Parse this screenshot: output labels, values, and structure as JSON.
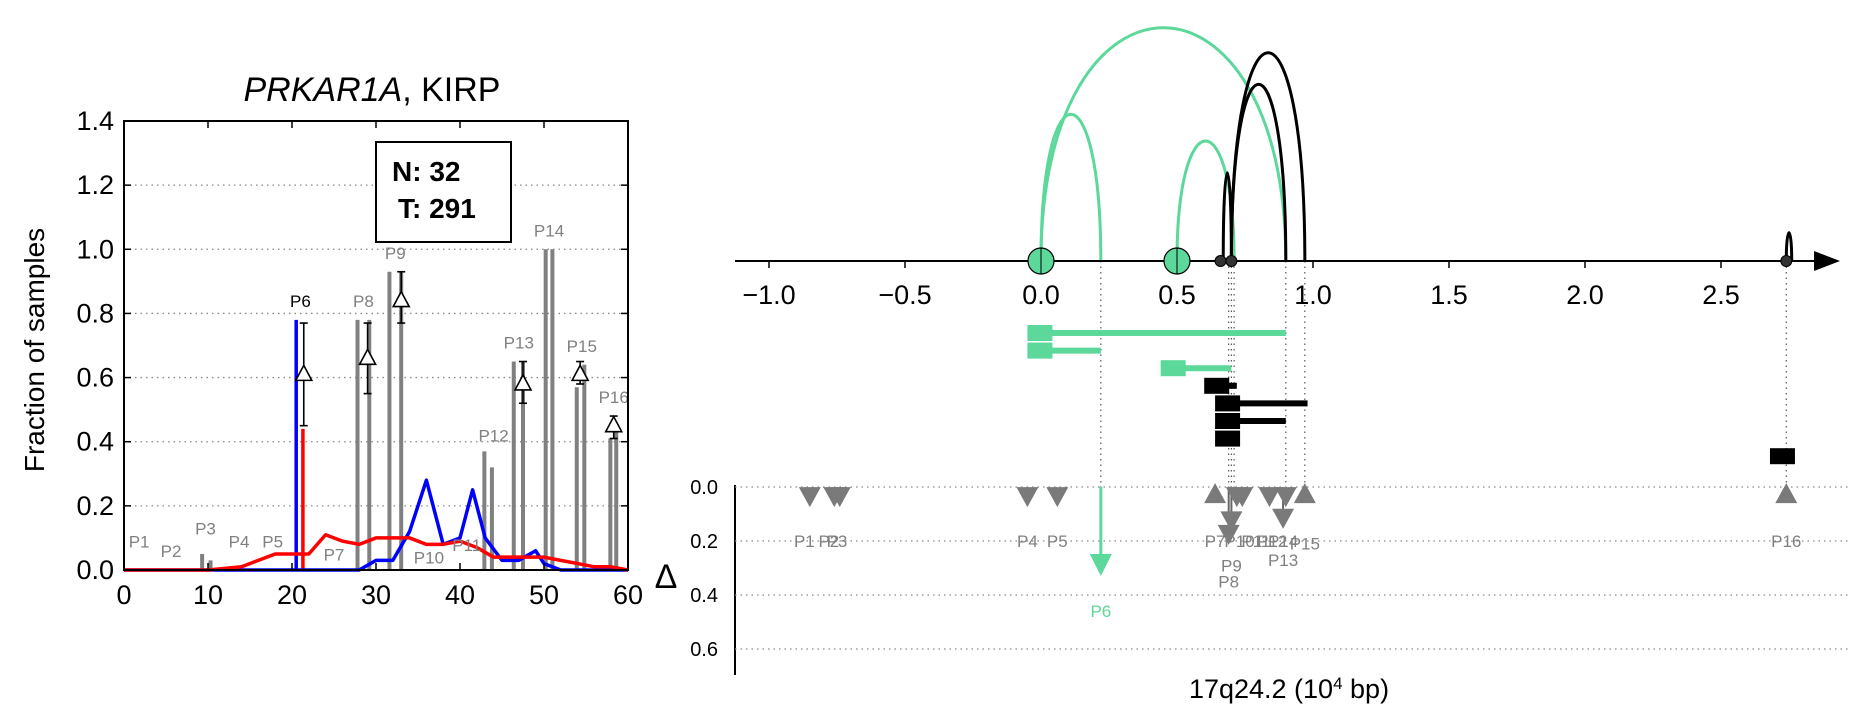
{
  "colors": {
    "blue": "#0000ff",
    "red": "#ff0000",
    "gray": "#808080",
    "green": "#5bd89a",
    "black": "#000000",
    "label_gray": "#808080"
  },
  "chart_data": [
    {
      "type": "bar",
      "title_italic": "PRKAR1A",
      "title_rest": ", KIRP",
      "xlabel": "",
      "ylabel": "Fraction of samples",
      "xlim": [
        0,
        60
      ],
      "ylim": [
        0,
        1.4
      ],
      "xticks": [
        0,
        10,
        20,
        30,
        40,
        50,
        60
      ],
      "yticks": [
        0.0,
        0.2,
        0.4,
        0.6,
        0.8,
        1.0,
        1.2,
        1.4
      ],
      "grid": "y-dotted",
      "legend_box": {
        "lines": [
          "N: 32",
          "T: 291"
        ],
        "placement": "top-center"
      },
      "bar_series_gray": [
        {
          "x": 9.3,
          "value": 0.05
        },
        {
          "x": 10.3,
          "value": 0.03
        },
        {
          "x": 27.8,
          "value": 0.78
        },
        {
          "x": 29.2,
          "value": 0.78
        },
        {
          "x": 31.6,
          "value": 0.93
        },
        {
          "x": 33.0,
          "value": 0.93
        },
        {
          "x": 42.9,
          "value": 0.37
        },
        {
          "x": 43.8,
          "value": 0.32
        },
        {
          "x": 46.4,
          "value": 0.65
        },
        {
          "x": 47.5,
          "value": 0.65
        },
        {
          "x": 50.2,
          "value": 1.0
        },
        {
          "x": 51.0,
          "value": 1.0
        },
        {
          "x": 53.9,
          "value": 0.57
        },
        {
          "x": 54.8,
          "value": 0.64
        },
        {
          "x": 57.9,
          "value": 0.41
        },
        {
          "x": 58.6,
          "value": 0.45
        }
      ],
      "highlight_bars": [
        {
          "series": "blue",
          "x": 20.5,
          "value": 0.78
        },
        {
          "series": "red",
          "x": 21.3,
          "value": 0.44
        }
      ],
      "line_series": [
        {
          "color_key": "blue",
          "x": [
            0,
            10,
            20,
            26,
            28,
            30,
            32,
            34,
            36,
            38,
            40,
            41.5,
            43,
            45,
            47,
            49,
            50,
            52,
            55,
            58,
            60
          ],
          "values": [
            0,
            0,
            0,
            0,
            0,
            0.03,
            0.03,
            0.12,
            0.28,
            0.08,
            0.1,
            0.25,
            0.1,
            0.03,
            0.03,
            0.06,
            0.02,
            0,
            0,
            0,
            0
          ]
        },
        {
          "color_key": "red",
          "x": [
            0,
            10,
            14,
            18,
            20,
            22,
            24,
            26,
            28,
            30,
            32,
            34,
            36,
            38,
            40,
            42,
            44,
            46,
            48,
            50,
            52,
            54,
            56,
            58,
            60
          ],
          "values": [
            0,
            0,
            0.01,
            0.05,
            0.05,
            0.05,
            0.11,
            0.09,
            0.08,
            0.1,
            0.1,
            0.1,
            0.08,
            0.08,
            0.09,
            0.07,
            0.04,
            0.04,
            0.04,
            0.04,
            0.03,
            0.02,
            0.01,
            0.01,
            0
          ]
        }
      ],
      "error_markers": [
        {
          "x": 21.4,
          "value": 0.61,
          "low": 0.45,
          "high": 0.77
        },
        {
          "x": 29.0,
          "value": 0.66,
          "low": 0.55,
          "high": 0.77
        },
        {
          "x": 33.0,
          "value": 0.84,
          "low": 0.77,
          "high": 0.93
        },
        {
          "x": 47.5,
          "value": 0.58,
          "low": 0.52,
          "high": 0.65
        },
        {
          "x": 54.3,
          "value": 0.61,
          "low": 0.58,
          "high": 0.65
        },
        {
          "x": 58.3,
          "value": 0.45,
          "low": 0.41,
          "high": 0.48
        }
      ],
      "peak_labels": [
        {
          "text": "P1",
          "x": 1.8,
          "y": 0.07,
          "color_key": "label_gray"
        },
        {
          "text": "P2",
          "x": 5.6,
          "y": 0.04,
          "color_key": "label_gray"
        },
        {
          "text": "P3",
          "x": 9.7,
          "y": 0.11,
          "color_key": "label_gray"
        },
        {
          "text": "P4",
          "x": 13.7,
          "y": 0.07,
          "color_key": "label_gray"
        },
        {
          "text": "P5",
          "x": 17.7,
          "y": 0.07,
          "color_key": "label_gray"
        },
        {
          "text": "P6",
          "x": 21.0,
          "y": 0.82,
          "color_key": "black"
        },
        {
          "text": "P7",
          "x": 25.0,
          "y": 0.03,
          "color_key": "label_gray"
        },
        {
          "text": "P8",
          "x": 28.5,
          "y": 0.82,
          "color_key": "label_gray"
        },
        {
          "text": "P9",
          "x": 32.3,
          "y": 0.97,
          "color_key": "label_gray"
        },
        {
          "text": "P10",
          "x": 36.3,
          "y": 0.02,
          "color_key": "label_gray"
        },
        {
          "text": "P11",
          "x": 40.8,
          "y": 0.06,
          "color_key": "label_gray"
        },
        {
          "text": "P12",
          "x": 44.0,
          "y": 0.4,
          "color_key": "label_gray"
        },
        {
          "text": "P13",
          "x": 47.0,
          "y": 0.69,
          "color_key": "label_gray"
        },
        {
          "text": "P14",
          "x": 50.6,
          "y": 1.04,
          "color_key": "label_gray"
        },
        {
          "text": "P15",
          "x": 54.5,
          "y": 0.68,
          "color_key": "label_gray"
        },
        {
          "text": "P16",
          "x": 58.3,
          "y": 0.52,
          "color_key": "label_gray"
        }
      ]
    },
    {
      "type": "scatter",
      "xlabel": "17q24.2 (10",
      "xlabel_sup": "4",
      "xlabel_tail": " bp)",
      "ylabel": "Δ",
      "xlim": [
        -1.1,
        2.85
      ],
      "x_ticks": [
        "−1.0",
        "−0.5",
        "0.0",
        "0.5",
        "1.0",
        "1.5",
        "2.0",
        "2.5"
      ],
      "x_tick_values": [
        -1.0,
        -0.5,
        0.0,
        0.5,
        1.0,
        1.5,
        2.0,
        2.5
      ],
      "ylim": [
        0,
        0.7
      ],
      "y_ticks": [
        "0.0",
        "0.2",
        "0.4",
        "0.6"
      ],
      "y_tick_values": [
        0.0,
        0.2,
        0.4,
        0.6
      ],
      "arcs": [
        {
          "x1": 0.0,
          "x2": 0.22,
          "height": 0.88,
          "color_key": "green"
        },
        {
          "x1": 0.0,
          "x2": 0.9,
          "height": 1.4,
          "color_key": "green"
        },
        {
          "x1": 0.5,
          "x2": 0.71,
          "height": 0.72,
          "color_key": "green"
        },
        {
          "x1": 0.67,
          "x2": 0.7,
          "height": 0.53,
          "color_key": "black"
        },
        {
          "x1": 0.7,
          "x2": 0.9,
          "height": 1.06,
          "color_key": "black"
        },
        {
          "x1": 0.7,
          "x2": 0.97,
          "height": 1.25,
          "color_key": "black"
        },
        {
          "x1": 2.74,
          "x2": 2.76,
          "height": 0.17,
          "color_key": "black"
        }
      ],
      "axis_circles": [
        {
          "x": 0.0,
          "kind": "large",
          "color_key": "green"
        },
        {
          "x": 0.5,
          "kind": "large",
          "color_key": "green"
        },
        {
          "x": 0.66,
          "kind": "small",
          "color_key": "black"
        },
        {
          "x": 0.7,
          "kind": "small",
          "color_key": "black"
        },
        {
          "x": 2.74,
          "kind": "small",
          "color_key": "black"
        }
      ],
      "segments": [
        {
          "x_start": -0.05,
          "x_end": 0.9,
          "row": 0,
          "color_key": "green"
        },
        {
          "x_start": -0.05,
          "x_end": 0.22,
          "row": 1,
          "color_key": "green"
        },
        {
          "x_start": 0.44,
          "x_end": 0.7,
          "row": 2,
          "color_key": "green"
        },
        {
          "x_start": 0.6,
          "x_end": 0.72,
          "row": 3,
          "color_key": "black"
        },
        {
          "x_start": 0.64,
          "x_end": 0.98,
          "row": 4,
          "color_key": "black"
        },
        {
          "x_start": 0.64,
          "x_end": 0.9,
          "row": 5,
          "color_key": "black"
        },
        {
          "x_start": 0.64,
          "x_end": 0.71,
          "row": 6,
          "color_key": "black"
        },
        {
          "x_start": 2.68,
          "x_end": 2.77,
          "row": 7,
          "color_key": "black"
        }
      ],
      "guides": [
        0.22,
        0.69,
        0.7,
        0.71,
        0.9,
        0.97,
        2.74
      ],
      "triangles": [
        {
          "label": "P1",
          "x": -0.85,
          "value": 0.03,
          "dir": "down",
          "color_key": "gray"
        },
        {
          "label": "P2",
          "x": -0.76,
          "value": 0.03,
          "dir": "down",
          "color_key": "gray"
        },
        {
          "label": "P3",
          "x": -0.74,
          "value": 0.03,
          "dir": "down",
          "color_key": "gray"
        },
        {
          "label": "P4",
          "x": -0.05,
          "value": 0.03,
          "dir": "down",
          "color_key": "gray"
        },
        {
          "label": "P5",
          "x": 0.06,
          "value": 0.03,
          "dir": "down",
          "color_key": "gray"
        },
        {
          "label": "P6",
          "x": 0.22,
          "value": 0.3,
          "dir": "arrow",
          "color_key": "green"
        },
        {
          "label": "P7",
          "x": 0.64,
          "value": 0.03,
          "dir": "up",
          "color_key": "gray"
        },
        {
          "label": "P8",
          "x": 0.69,
          "value": 0.17,
          "dir": "down",
          "color_key": "gray"
        },
        {
          "label": "P9",
          "x": 0.7,
          "value": 0.12,
          "dir": "down",
          "color_key": "gray"
        },
        {
          "label": "P10",
          "x": 0.72,
          "value": 0.03,
          "dir": "down",
          "color_key": "gray"
        },
        {
          "label": "P11",
          "x": 0.74,
          "value": 0.03,
          "dir": "down",
          "color_key": "gray"
        },
        {
          "label": "P12",
          "x": 0.84,
          "value": 0.03,
          "dir": "down",
          "color_key": "gray"
        },
        {
          "label": "P13",
          "x": 0.89,
          "value": 0.11,
          "dir": "down",
          "color_key": "gray"
        },
        {
          "label": "P14",
          "x": 0.9,
          "value": 0.03,
          "dir": "down",
          "color_key": "gray"
        },
        {
          "label": "P15",
          "x": 0.97,
          "value": 0.03,
          "dir": "up",
          "color_key": "gray"
        },
        {
          "label": "P16",
          "x": 2.74,
          "value": 0.03,
          "dir": "up",
          "color_key": "gray"
        }
      ],
      "triangle_labels": [
        {
          "text": "P1",
          "x": -0.87,
          "value": 0.2,
          "color_key": "label_gray"
        },
        {
          "text": "P2",
          "x": -0.78,
          "value": 0.2,
          "color_key": "label_gray"
        },
        {
          "text": "P3",
          "x": -0.75,
          "value": 0.2,
          "color_key": "label_gray"
        },
        {
          "text": "P4",
          "x": -0.05,
          "value": 0.2,
          "color_key": "label_gray"
        },
        {
          "text": "P5",
          "x": 0.06,
          "value": 0.2,
          "color_key": "label_gray"
        },
        {
          "text": "P6",
          "x": 0.22,
          "value": 0.46,
          "color_key": "green"
        },
        {
          "text": "P7",
          "x": 0.64,
          "value": 0.2,
          "color_key": "label_gray"
        },
        {
          "text": "P8",
          "x": 0.69,
          "value": 0.35,
          "color_key": "label_gray"
        },
        {
          "text": "P9",
          "x": 0.7,
          "value": 0.29,
          "color_key": "label_gray"
        },
        {
          "text": "P10",
          "x": 0.73,
          "value": 0.2,
          "color_key": "label_gray"
        },
        {
          "text": "P11",
          "x": 0.79,
          "value": 0.2,
          "color_key": "label_gray"
        },
        {
          "text": "P12",
          "x": 0.85,
          "value": 0.2,
          "color_key": "label_gray"
        },
        {
          "text": "P13",
          "x": 0.89,
          "value": 0.27,
          "color_key": "label_gray"
        },
        {
          "text": "P14",
          "x": 0.89,
          "value": 0.2,
          "color_key": "label_gray"
        },
        {
          "text": "P15",
          "x": 0.97,
          "value": 0.21,
          "color_key": "label_gray"
        },
        {
          "text": "P16",
          "x": 2.74,
          "value": 0.2,
          "color_key": "label_gray"
        }
      ]
    }
  ]
}
